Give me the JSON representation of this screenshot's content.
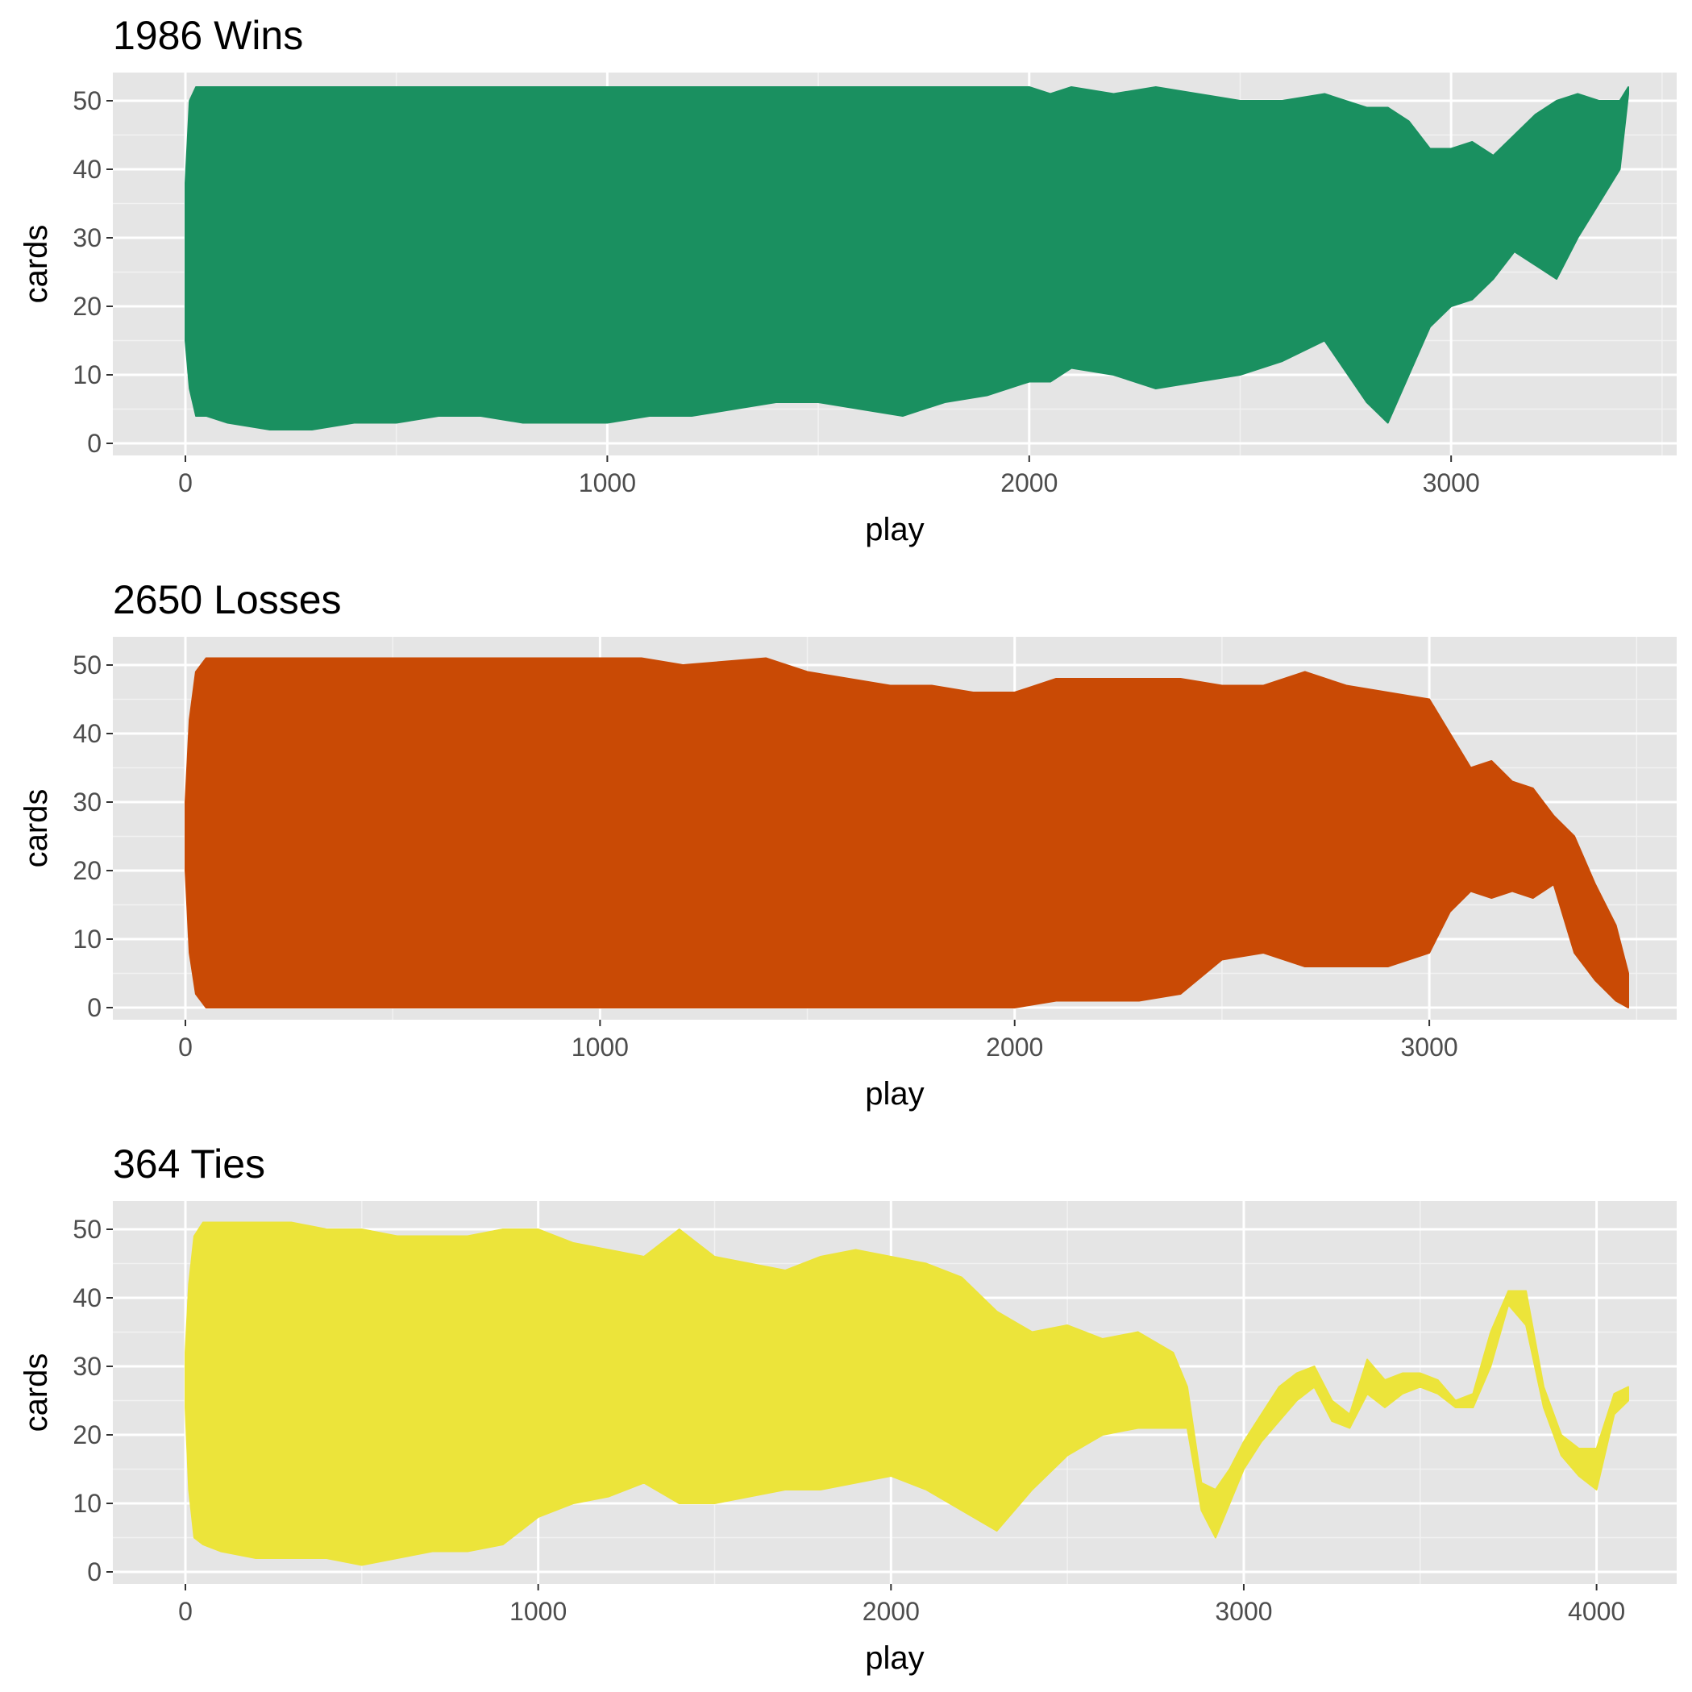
{
  "chart_data": [
    {
      "type": "area",
      "title": "1986 Wins",
      "xlabel": "play",
      "ylabel": "cards",
      "xlim": [
        0,
        3420
      ],
      "ylim": [
        0,
        52
      ],
      "x_ticks": [
        0,
        1000,
        2000,
        3000
      ],
      "x_tick_labels": [
        "0",
        "1000",
        "2000",
        "3000"
      ],
      "y_ticks": [
        0,
        10,
        20,
        30,
        40,
        50
      ],
      "y_tick_labels": [
        "0",
        "10",
        "20",
        "30",
        "40",
        "50"
      ],
      "grid": true,
      "color": "#1a9060",
      "series": [
        {
          "x": [
            0,
            10,
            25,
            50,
            100,
            200,
            300,
            400,
            500,
            600,
            700,
            800,
            900,
            1000,
            1100,
            1200,
            1300,
            1400,
            1500,
            1600,
            1700,
            1800,
            1900,
            2000,
            2050,
            2100,
            2200,
            2300,
            2400,
            2500,
            2600,
            2700,
            2800,
            2850,
            2900,
            2950,
            3000,
            3050,
            3100,
            3150,
            3200,
            3250,
            3300,
            3350,
            3400,
            3420
          ],
          "upper": [
            38,
            50,
            52,
            52,
            52,
            52,
            52,
            52,
            52,
            52,
            52,
            52,
            52,
            52,
            52,
            52,
            52,
            52,
            52,
            52,
            52,
            52,
            52,
            52,
            51,
            52,
            51,
            52,
            51,
            50,
            50,
            51,
            49,
            49,
            47,
            43,
            43,
            44,
            42,
            45,
            48,
            50,
            51,
            50,
            50,
            52
          ],
          "lower": [
            15,
            8,
            4,
            4,
            3,
            2,
            2,
            3,
            3,
            4,
            4,
            3,
            3,
            3,
            4,
            4,
            5,
            6,
            6,
            5,
            4,
            6,
            7,
            9,
            9,
            11,
            10,
            8,
            9,
            10,
            12,
            15,
            6,
            3,
            10,
            17,
            20,
            21,
            24,
            28,
            26,
            24,
            30,
            35,
            40,
            51
          ]
        }
      ]
    },
    {
      "type": "area",
      "title": "2650 Losses",
      "xlabel": "play",
      "ylabel": "cards",
      "xlim": [
        0,
        3480
      ],
      "ylim": [
        0,
        52
      ],
      "x_ticks": [
        0,
        1000,
        2000,
        3000
      ],
      "x_tick_labels": [
        "0",
        "1000",
        "2000",
        "3000"
      ],
      "y_ticks": [
        0,
        10,
        20,
        30,
        40,
        50
      ],
      "y_tick_labels": [
        "0",
        "10",
        "20",
        "30",
        "40",
        "50"
      ],
      "grid": true,
      "color": "#c94a05",
      "series": [
        {
          "x": [
            0,
            10,
            25,
            50,
            100,
            200,
            400,
            600,
            800,
            1000,
            1100,
            1200,
            1400,
            1500,
            1600,
            1700,
            1800,
            1900,
            2000,
            2100,
            2200,
            2300,
            2400,
            2500,
            2600,
            2700,
            2800,
            2900,
            3000,
            3050,
            3100,
            3150,
            3200,
            3250,
            3300,
            3350,
            3400,
            3450,
            3480
          ],
          "upper": [
            30,
            42,
            49,
            51,
            51,
            51,
            51,
            51,
            51,
            51,
            51,
            50,
            51,
            49,
            48,
            47,
            47,
            46,
            46,
            48,
            48,
            48,
            48,
            47,
            47,
            49,
            47,
            46,
            45,
            40,
            35,
            36,
            33,
            32,
            28,
            25,
            18,
            12,
            5
          ],
          "lower": [
            20,
            8,
            2,
            0,
            0,
            0,
            0,
            0,
            0,
            0,
            0,
            0,
            0,
            0,
            0,
            0,
            0,
            0,
            0,
            1,
            1,
            1,
            2,
            7,
            8,
            6,
            6,
            6,
            8,
            14,
            17,
            16,
            17,
            16,
            18,
            8,
            4,
            1,
            0
          ]
        }
      ]
    },
    {
      "type": "area",
      "title": "364 Ties",
      "xlabel": "play",
      "ylabel": "cards",
      "xlim": [
        0,
        4090
      ],
      "ylim": [
        0,
        52
      ],
      "x_ticks": [
        0,
        1000,
        2000,
        3000,
        4000
      ],
      "x_tick_labels": [
        "0",
        "1000",
        "2000",
        "3000",
        "4000"
      ],
      "y_ticks": [
        0,
        10,
        20,
        30,
        40,
        50
      ],
      "y_tick_labels": [
        "0",
        "10",
        "20",
        "30",
        "40",
        "50"
      ],
      "grid": true,
      "color": "#ece43a",
      "series": [
        {
          "x": [
            0,
            10,
            25,
            50,
            100,
            200,
            300,
            400,
            500,
            600,
            700,
            800,
            900,
            1000,
            1100,
            1200,
            1300,
            1400,
            1500,
            1600,
            1700,
            1800,
            1900,
            2000,
            2100,
            2200,
            2300,
            2400,
            2500,
            2600,
            2700,
            2800,
            2840,
            2880,
            2920,
            2960,
            3000,
            3050,
            3100,
            3150,
            3200,
            3250,
            3300,
            3350,
            3400,
            3450,
            3500,
            3550,
            3600,
            3650,
            3700,
            3750,
            3800,
            3850,
            3900,
            3950,
            4000,
            4050,
            4090
          ],
          "upper": [
            32,
            42,
            49,
            51,
            51,
            51,
            51,
            50,
            50,
            49,
            49,
            49,
            50,
            50,
            48,
            47,
            46,
            50,
            46,
            45,
            44,
            46,
            47,
            46,
            45,
            43,
            38,
            35,
            36,
            34,
            35,
            32,
            27,
            13,
            12,
            15,
            19,
            23,
            27,
            29,
            30,
            25,
            23,
            31,
            28,
            29,
            29,
            28,
            25,
            26,
            35,
            41,
            41,
            27,
            20,
            18,
            18,
            26,
            27
          ],
          "lower": [
            24,
            12,
            5,
            4,
            3,
            2,
            2,
            2,
            1,
            2,
            3,
            3,
            4,
            8,
            10,
            11,
            13,
            10,
            10,
            11,
            12,
            12,
            13,
            14,
            12,
            9,
            6,
            12,
            17,
            20,
            21,
            21,
            21,
            9,
            5,
            10,
            15,
            19,
            22,
            25,
            27,
            22,
            21,
            26,
            24,
            26,
            27,
            26,
            24,
            24,
            30,
            39,
            36,
            24,
            17,
            14,
            12,
            23,
            25
          ]
        }
      ]
    }
  ]
}
